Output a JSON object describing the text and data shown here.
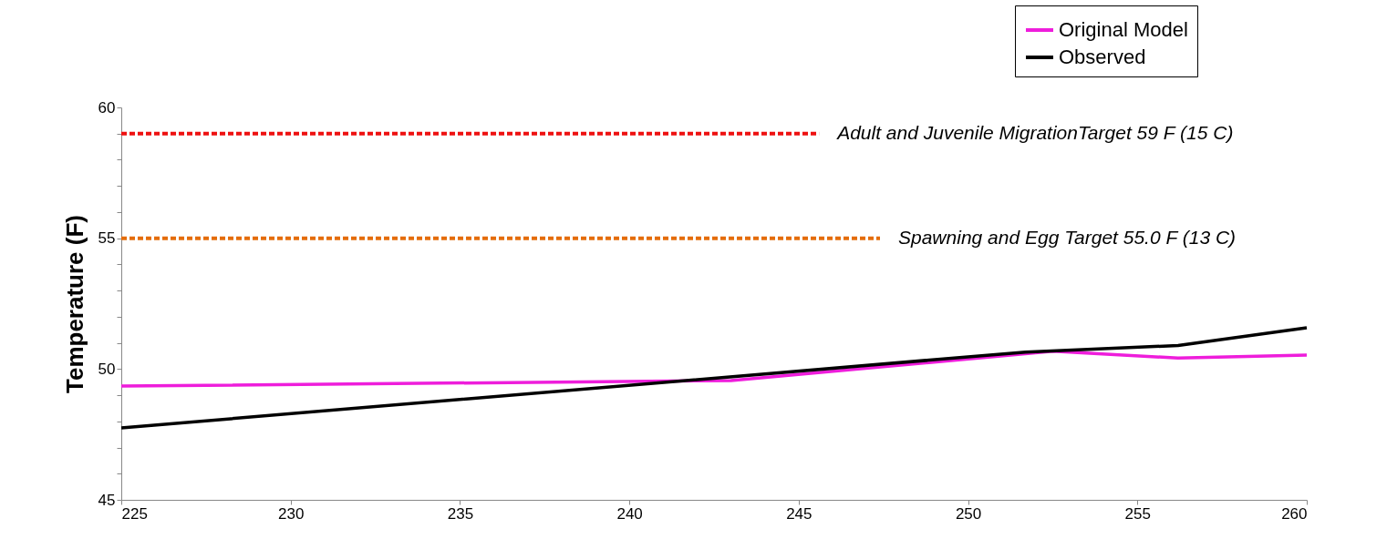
{
  "chart_data": {
    "type": "line",
    "ylabel": "Temperature (F)",
    "xlim": [
      225,
      260
    ],
    "ylim": [
      45,
      60
    ],
    "xticks": [
      225,
      230,
      235,
      240,
      245,
      250,
      255,
      260
    ],
    "yticks": [
      45,
      {
        "value": 46,
        "label": null
      },
      {
        "value": 47,
        "label": null
      },
      {
        "value": 48,
        "label": null
      },
      {
        "value": 49,
        "label": null
      },
      50,
      {
        "value": 51,
        "label": null
      },
      {
        "value": 52,
        "label": null
      },
      {
        "value": 53,
        "label": null
      },
      {
        "value": 54,
        "label": null
      },
      55,
      {
        "value": 56,
        "label": null
      },
      {
        "value": 57,
        "label": null
      },
      {
        "value": 58,
        "label": null
      },
      {
        "value": 59,
        "label": null
      },
      60
    ],
    "grid": false,
    "legend": "top right",
    "marker": "none",
    "line_style": "solid",
    "series": [
      {
        "name": "Original Model",
        "color": "#ee1ddb",
        "x": [
          225,
          243,
          252.5,
          256.2,
          260
        ],
        "values": [
          49.35,
          49.56,
          50.68,
          50.42,
          50.53
        ]
      },
      {
        "name": "Observed",
        "color": "#000000",
        "x": [
          225,
          251.7,
          256.2,
          260
        ],
        "values": [
          47.75,
          50.65,
          50.9,
          51.58
        ]
      },
      {
        "type": "line",
        "line_style": "dashed",
        "color": "#ee1111",
        "x": [
          225,
          245.6
        ],
        "values": [
          59,
          59
        ]
      },
      {
        "type": "line",
        "line_style": "dashed",
        "color": "#e46c0a",
        "x": [
          225,
          247.4
        ],
        "values": [
          55,
          55
        ]
      }
    ],
    "annotations": [
      {
        "text": "Adult and Juvenile MigrationTarget 59 F  (15 C)",
        "x": 245.6,
        "y": 59
      },
      {
        "text": "Spawning and Egg Target 55.0 F (13 C)",
        "x": 247.4,
        "y": 55
      }
    ]
  }
}
